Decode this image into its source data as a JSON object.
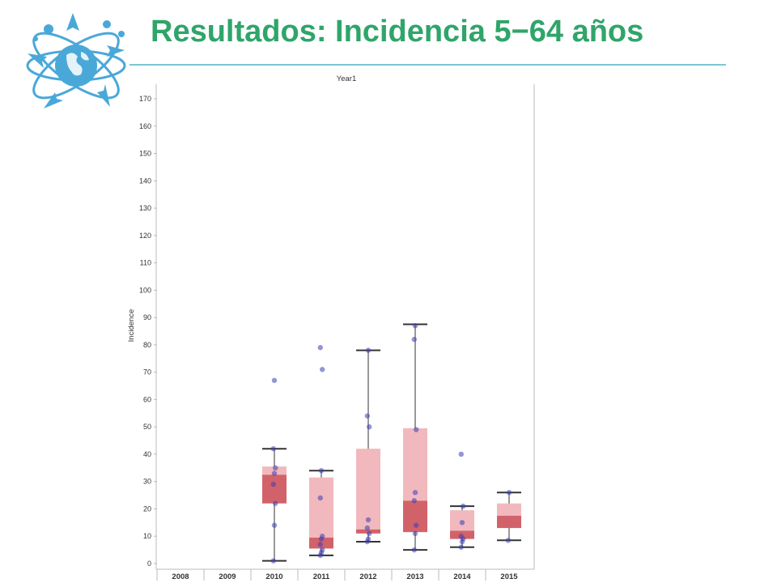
{
  "slide": {
    "title": "Resultados: Incidencia 5−64 años"
  },
  "colors": {
    "title": "#2fa56a",
    "rule": "#7cc6d6",
    "logo": "#4aa8d8",
    "box_light": "#f1b9bd",
    "box_dark": "#d2626a",
    "point": "#3c3cb4",
    "whisker": "#333333",
    "axis": "#bbbbbb"
  },
  "chart_data": {
    "type": "box",
    "title": "Year1",
    "ylabel": "Incidence",
    "xlabel": "",
    "ylim": [
      0,
      170
    ],
    "yticks": [
      0,
      10,
      20,
      30,
      40,
      50,
      60,
      70,
      80,
      90,
      100,
      110,
      120,
      130,
      140,
      150,
      160,
      170
    ],
    "categories": [
      "2008",
      "2009",
      "2010",
      "2011",
      "2012",
      "2013",
      "2014",
      "2015"
    ],
    "grid": false,
    "boxes": [
      {
        "year": "2008",
        "min": null,
        "q1": null,
        "median": null,
        "q3": null,
        "max": null,
        "points": []
      },
      {
        "year": "2009",
        "min": null,
        "q1": null,
        "median": null,
        "q3": null,
        "max": null,
        "points": []
      },
      {
        "year": "2010",
        "min": 1,
        "q1": 22,
        "median": 32.5,
        "q3": 35.5,
        "max": 42,
        "points": [
          1,
          14,
          22,
          29,
          33,
          35,
          42,
          67
        ]
      },
      {
        "year": "2011",
        "min": 3,
        "q1": 5.5,
        "median": 9.5,
        "q3": 31.5,
        "max": 34,
        "points": [
          3,
          4,
          5,
          7,
          9,
          10,
          24,
          34,
          71,
          79
        ]
      },
      {
        "year": "2012",
        "min": 8,
        "q1": 11,
        "median": 12.5,
        "q3": 42,
        "max": 78,
        "points": [
          8,
          9,
          11,
          13,
          16,
          50,
          54,
          78
        ]
      },
      {
        "year": "2013",
        "min": 5,
        "q1": 11.5,
        "median": 23,
        "q3": 49.5,
        "max": 87.5,
        "points": [
          5,
          11,
          14,
          23,
          26,
          49,
          82,
          87
        ]
      },
      {
        "year": "2014",
        "min": 6,
        "q1": 9,
        "median": 12,
        "q3": 19.5,
        "max": 21,
        "points": [
          6,
          8,
          9,
          10,
          15,
          21,
          40
        ]
      },
      {
        "year": "2015",
        "min": 8.5,
        "q1": 13,
        "median": 17.5,
        "q3": 22,
        "max": 26,
        "points": [
          8.5,
          26
        ]
      }
    ]
  }
}
